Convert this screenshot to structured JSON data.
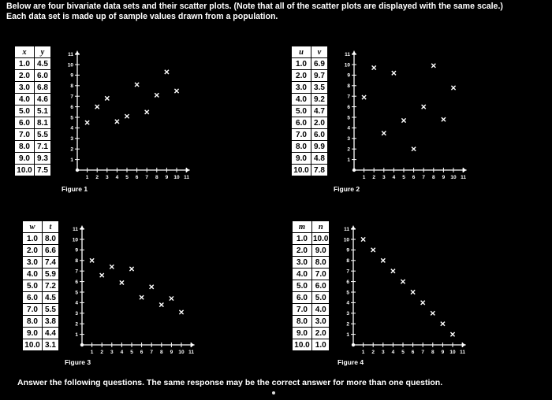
{
  "intro": {
    "line1": "Below are four bivariate data sets and their scatter plots. (Note that all of the scatter plots are displayed with the same scale.)",
    "line2": "Each data set is made up of sample values drawn from a population."
  },
  "question_text": "Answer the following questions. The same response may be the correct answer for more than one question.",
  "panels": [
    {
      "var_x": "x",
      "var_y": "y",
      "figure_label": "Figure 1",
      "rows": [
        [
          "1.0",
          "4.5"
        ],
        [
          "2.0",
          "6.0"
        ],
        [
          "3.0",
          "6.8"
        ],
        [
          "4.0",
          "4.6"
        ],
        [
          "5.0",
          "5.1"
        ],
        [
          "6.0",
          "8.1"
        ],
        [
          "7.0",
          "5.5"
        ],
        [
          "8.0",
          "7.1"
        ],
        [
          "9.0",
          "9.3"
        ],
        [
          "10.0",
          "7.5"
        ]
      ]
    },
    {
      "var_x": "u",
      "var_y": "v",
      "figure_label": "Figure 2",
      "rows": [
        [
          "1.0",
          "6.9"
        ],
        [
          "2.0",
          "9.7"
        ],
        [
          "3.0",
          "3.5"
        ],
        [
          "4.0",
          "9.2"
        ],
        [
          "5.0",
          "4.7"
        ],
        [
          "6.0",
          "2.0"
        ],
        [
          "7.0",
          "6.0"
        ],
        [
          "8.0",
          "9.9"
        ],
        [
          "9.0",
          "4.8"
        ],
        [
          "10.0",
          "7.8"
        ]
      ]
    },
    {
      "var_x": "w",
      "var_y": "t",
      "figure_label": "Figure 3",
      "rows": [
        [
          "1.0",
          "8.0"
        ],
        [
          "2.0",
          "6.6"
        ],
        [
          "3.0",
          "7.4"
        ],
        [
          "4.0",
          "5.9"
        ],
        [
          "5.0",
          "7.2"
        ],
        [
          "6.0",
          "4.5"
        ],
        [
          "7.0",
          "5.5"
        ],
        [
          "8.0",
          "3.8"
        ],
        [
          "9.0",
          "4.4"
        ],
        [
          "10.0",
          "3.1"
        ]
      ]
    },
    {
      "var_x": "m",
      "var_y": "n",
      "figure_label": "Figure 4",
      "rows": [
        [
          "1.0",
          "10.0"
        ],
        [
          "2.0",
          "9.0"
        ],
        [
          "3.0",
          "8.0"
        ],
        [
          "4.0",
          "7.0"
        ],
        [
          "5.0",
          "6.0"
        ],
        [
          "6.0",
          "5.0"
        ],
        [
          "7.0",
          "4.0"
        ],
        [
          "8.0",
          "3.0"
        ],
        [
          "9.0",
          "2.0"
        ],
        [
          "10.0",
          "1.0"
        ]
      ]
    }
  ],
  "chart_data": [
    {
      "type": "scatter",
      "title": "Figure 1",
      "marker": "x",
      "x": [
        1,
        2,
        3,
        4,
        5,
        6,
        7,
        8,
        9,
        10
      ],
      "y": [
        4.5,
        6.0,
        6.8,
        4.6,
        5.1,
        8.1,
        5.5,
        7.1,
        9.3,
        7.5
      ],
      "xlim": [
        0,
        11
      ],
      "ylim": [
        0,
        11
      ],
      "xticks": [
        "1",
        "2",
        "3",
        "4",
        "5",
        "6",
        "7",
        "8",
        "9",
        "10",
        "11"
      ],
      "yticks": [
        "1",
        "2",
        "3",
        "4",
        "5",
        "6",
        "7",
        "8",
        "9",
        "10",
        "11"
      ]
    },
    {
      "type": "scatter",
      "title": "Figure 2",
      "marker": "x",
      "x": [
        1,
        2,
        3,
        4,
        5,
        6,
        7,
        8,
        9,
        10
      ],
      "y": [
        6.9,
        9.7,
        3.5,
        9.2,
        4.7,
        2.0,
        6.0,
        9.9,
        4.8,
        7.8
      ],
      "xlim": [
        0,
        11
      ],
      "ylim": [
        0,
        11
      ],
      "xticks": [
        "1",
        "2",
        "3",
        "4",
        "5",
        "6",
        "7",
        "8",
        "9",
        "10",
        "11"
      ],
      "yticks": [
        "1",
        "2",
        "3",
        "4",
        "5",
        "6",
        "7",
        "8",
        "9",
        "10",
        "11"
      ]
    },
    {
      "type": "scatter",
      "title": "Figure 3",
      "marker": "x",
      "x": [
        1,
        2,
        3,
        4,
        5,
        6,
        7,
        8,
        9,
        10
      ],
      "y": [
        8.0,
        6.6,
        7.4,
        5.9,
        7.2,
        4.5,
        5.5,
        3.8,
        4.4,
        3.1
      ],
      "xlim": [
        0,
        11
      ],
      "ylim": [
        0,
        11
      ],
      "xticks": [
        "1",
        "2",
        "3",
        "4",
        "5",
        "6",
        "7",
        "8",
        "9",
        "10",
        "11"
      ],
      "yticks": [
        "1",
        "2",
        "3",
        "4",
        "5",
        "6",
        "7",
        "8",
        "9",
        "10",
        "11"
      ]
    },
    {
      "type": "scatter",
      "title": "Figure 4",
      "marker": "x",
      "x": [
        1,
        2,
        3,
        4,
        5,
        6,
        7,
        8,
        9,
        10
      ],
      "y": [
        10.0,
        9.0,
        8.0,
        7.0,
        6.0,
        5.0,
        4.0,
        3.0,
        2.0,
        1.0
      ],
      "xlim": [
        0,
        11
      ],
      "ylim": [
        0,
        11
      ],
      "xticks": [
        "1",
        "2",
        "3",
        "4",
        "5",
        "6",
        "7",
        "8",
        "9",
        "10",
        "11"
      ],
      "yticks": [
        "1",
        "2",
        "3",
        "4",
        "5",
        "6",
        "7",
        "8",
        "9",
        "10",
        "11"
      ]
    }
  ]
}
